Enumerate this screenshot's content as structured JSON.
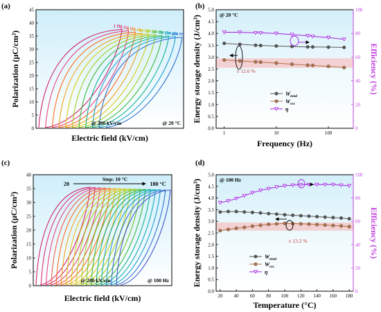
{
  "chart_data": [
    {
      "panel": "(a)",
      "type": "line",
      "xlabel": "Electric field (kV/cm)",
      "ylabel": "Polarization (μC/cm²)",
      "ylim": [
        0,
        45
      ],
      "yticks": [
        0,
        5,
        10,
        15,
        20,
        25,
        30,
        35,
        40,
        45
      ],
      "annotations": [
        "@ 200 kV/cm",
        "@ 20 °C"
      ],
      "series_labels": [
        "1 Hz",
        "2 Hz",
        "4 Hz",
        "5 Hz",
        "10 Hz",
        "20 Hz",
        "40 Hz",
        "50 Hz",
        "100 Hz",
        "200 Hz"
      ],
      "colors": [
        "#d1206a",
        "#e8457a",
        "#ff6a1a",
        "#f4a21a",
        "#d7cc12",
        "#9fce1c",
        "#39b83a",
        "#10b38f",
        "#1c9fd0",
        "#2e6fd0"
      ],
      "pmax": [
        37.5,
        37.0,
        36.5,
        36.0,
        35.8,
        35.5,
        35.2,
        35.0,
        34.8,
        34.5
      ]
    },
    {
      "panel": "(b)",
      "type": "line",
      "xlabel": "Frequency (Hz)",
      "ylabel": "Energy storage density (J/cm³)",
      "y2label": "Efficiency (%)",
      "xscale": "log",
      "xlim": [
        0.7,
        300
      ],
      "xticks": [
        1,
        10,
        100
      ],
      "ylim": [
        0,
        5
      ],
      "yticks": [
        0,
        0.5,
        1,
        1.5,
        2,
        2.5,
        3,
        3.5,
        4,
        4.5,
        5
      ],
      "y2lim": [
        0,
        100
      ],
      "y2ticks": [
        0,
        20,
        40,
        60,
        80,
        100
      ],
      "annotations": [
        "@ 20 °C",
        "± 12.6 %"
      ],
      "band": [
        2.55,
        2.95
      ],
      "x": [
        1,
        2,
        4,
        5,
        10,
        20,
        40,
        50,
        100,
        200
      ],
      "series": [
        {
          "name": "W_total",
          "axis": "left",
          "color": "#555555",
          "values": [
            3.58,
            3.54,
            3.5,
            3.49,
            3.47,
            3.45,
            3.43,
            3.43,
            3.42,
            3.41
          ]
        },
        {
          "name": "W_rec",
          "axis": "left",
          "color": "#b5714a",
          "values": [
            2.88,
            2.84,
            2.8,
            2.79,
            2.75,
            2.7,
            2.66,
            2.65,
            2.61,
            2.56
          ]
        },
        {
          "name": "η",
          "axis": "right",
          "color": "#a51de2",
          "values": [
            81,
            81,
            80.5,
            80.5,
            80,
            79,
            78,
            77.5,
            76.5,
            75
          ]
        }
      ],
      "legend": [
        "W",
        "W",
        "η"
      ],
      "legend_subscripts": [
        "total",
        "rec",
        ""
      ]
    },
    {
      "panel": "(c)",
      "type": "line",
      "xlabel": "Electric field (kV/cm)",
      "ylabel": "Polarization (μC/cm²)",
      "ylim": [
        0,
        40
      ],
      "yticks": [
        0,
        5,
        10,
        15,
        20,
        25,
        30,
        35,
        40
      ],
      "annotations": [
        "@ 200 kV/cm",
        "@ 100 Hz",
        "20",
        "Step: 10 °C",
        "180 °C"
      ],
      "series_count": 17,
      "colors": [
        "#d1206a",
        "#dd2f72",
        "#e8457a",
        "#f25a45",
        "#ff6a1a",
        "#f4a21a",
        "#e8c015",
        "#d7cc12",
        "#b7d018",
        "#9fce1c",
        "#6cc22a",
        "#39b83a",
        "#10b38f",
        "#14a9b8",
        "#1c9fd0",
        "#2e6fd0",
        "#3f55c9"
      ],
      "pmax": [
        35.5,
        35.4,
        35.3,
        35.2,
        35.1,
        35.0,
        35.0,
        34.9,
        34.9,
        34.8,
        34.8,
        34.7,
        34.7,
        34.6,
        34.6,
        34.5,
        34.5
      ]
    },
    {
      "panel": "(d)",
      "type": "line",
      "xlabel": "Temperature (°C)",
      "ylabel": "Energy storage density (J/cm³)",
      "y2label": "Efficiency (%)",
      "xlim": [
        15,
        185
      ],
      "xticks": [
        20,
        40,
        60,
        80,
        100,
        120,
        140,
        160,
        180
      ],
      "ylim": [
        0,
        5
      ],
      "yticks": [
        0,
        0.5,
        1,
        1.5,
        2,
        2.5,
        3,
        3.5,
        4,
        4.5,
        5
      ],
      "y2lim": [
        0,
        100
      ],
      "y2ticks": [
        0,
        20,
        40,
        60,
        80,
        100
      ],
      "annotations": [
        "@ 100 Hz",
        "± 13.2 %"
      ],
      "band": [
        2.6,
        2.95
      ],
      "x": [
        20,
        30,
        40,
        50,
        60,
        70,
        80,
        90,
        100,
        110,
        120,
        130,
        140,
        150,
        160,
        170,
        180
      ],
      "series": [
        {
          "name": "W_total",
          "axis": "left",
          "color": "#555555",
          "values": [
            3.4,
            3.42,
            3.42,
            3.4,
            3.38,
            3.36,
            3.33,
            3.31,
            3.28,
            3.26,
            3.24,
            3.22,
            3.2,
            3.18,
            3.16,
            3.14,
            3.11
          ]
        },
        {
          "name": "W_rec",
          "axis": "left",
          "color": "#b5714a",
          "values": [
            2.6,
            2.65,
            2.7,
            2.74,
            2.79,
            2.83,
            2.87,
            2.89,
            2.91,
            2.9,
            2.89,
            2.88,
            2.86,
            2.84,
            2.82,
            2.8,
            2.77
          ]
        },
        {
          "name": "η",
          "axis": "right",
          "color": "#a51de2",
          "values": [
            76,
            77.5,
            79.5,
            82,
            84.5,
            86.5,
            88,
            89.5,
            90.5,
            91,
            91.5,
            91.5,
            91.5,
            91.5,
            91.5,
            91,
            90.5
          ]
        }
      ],
      "legend": [
        "W",
        "W",
        "η"
      ],
      "legend_subscripts": [
        "total",
        "rec",
        ""
      ]
    }
  ]
}
